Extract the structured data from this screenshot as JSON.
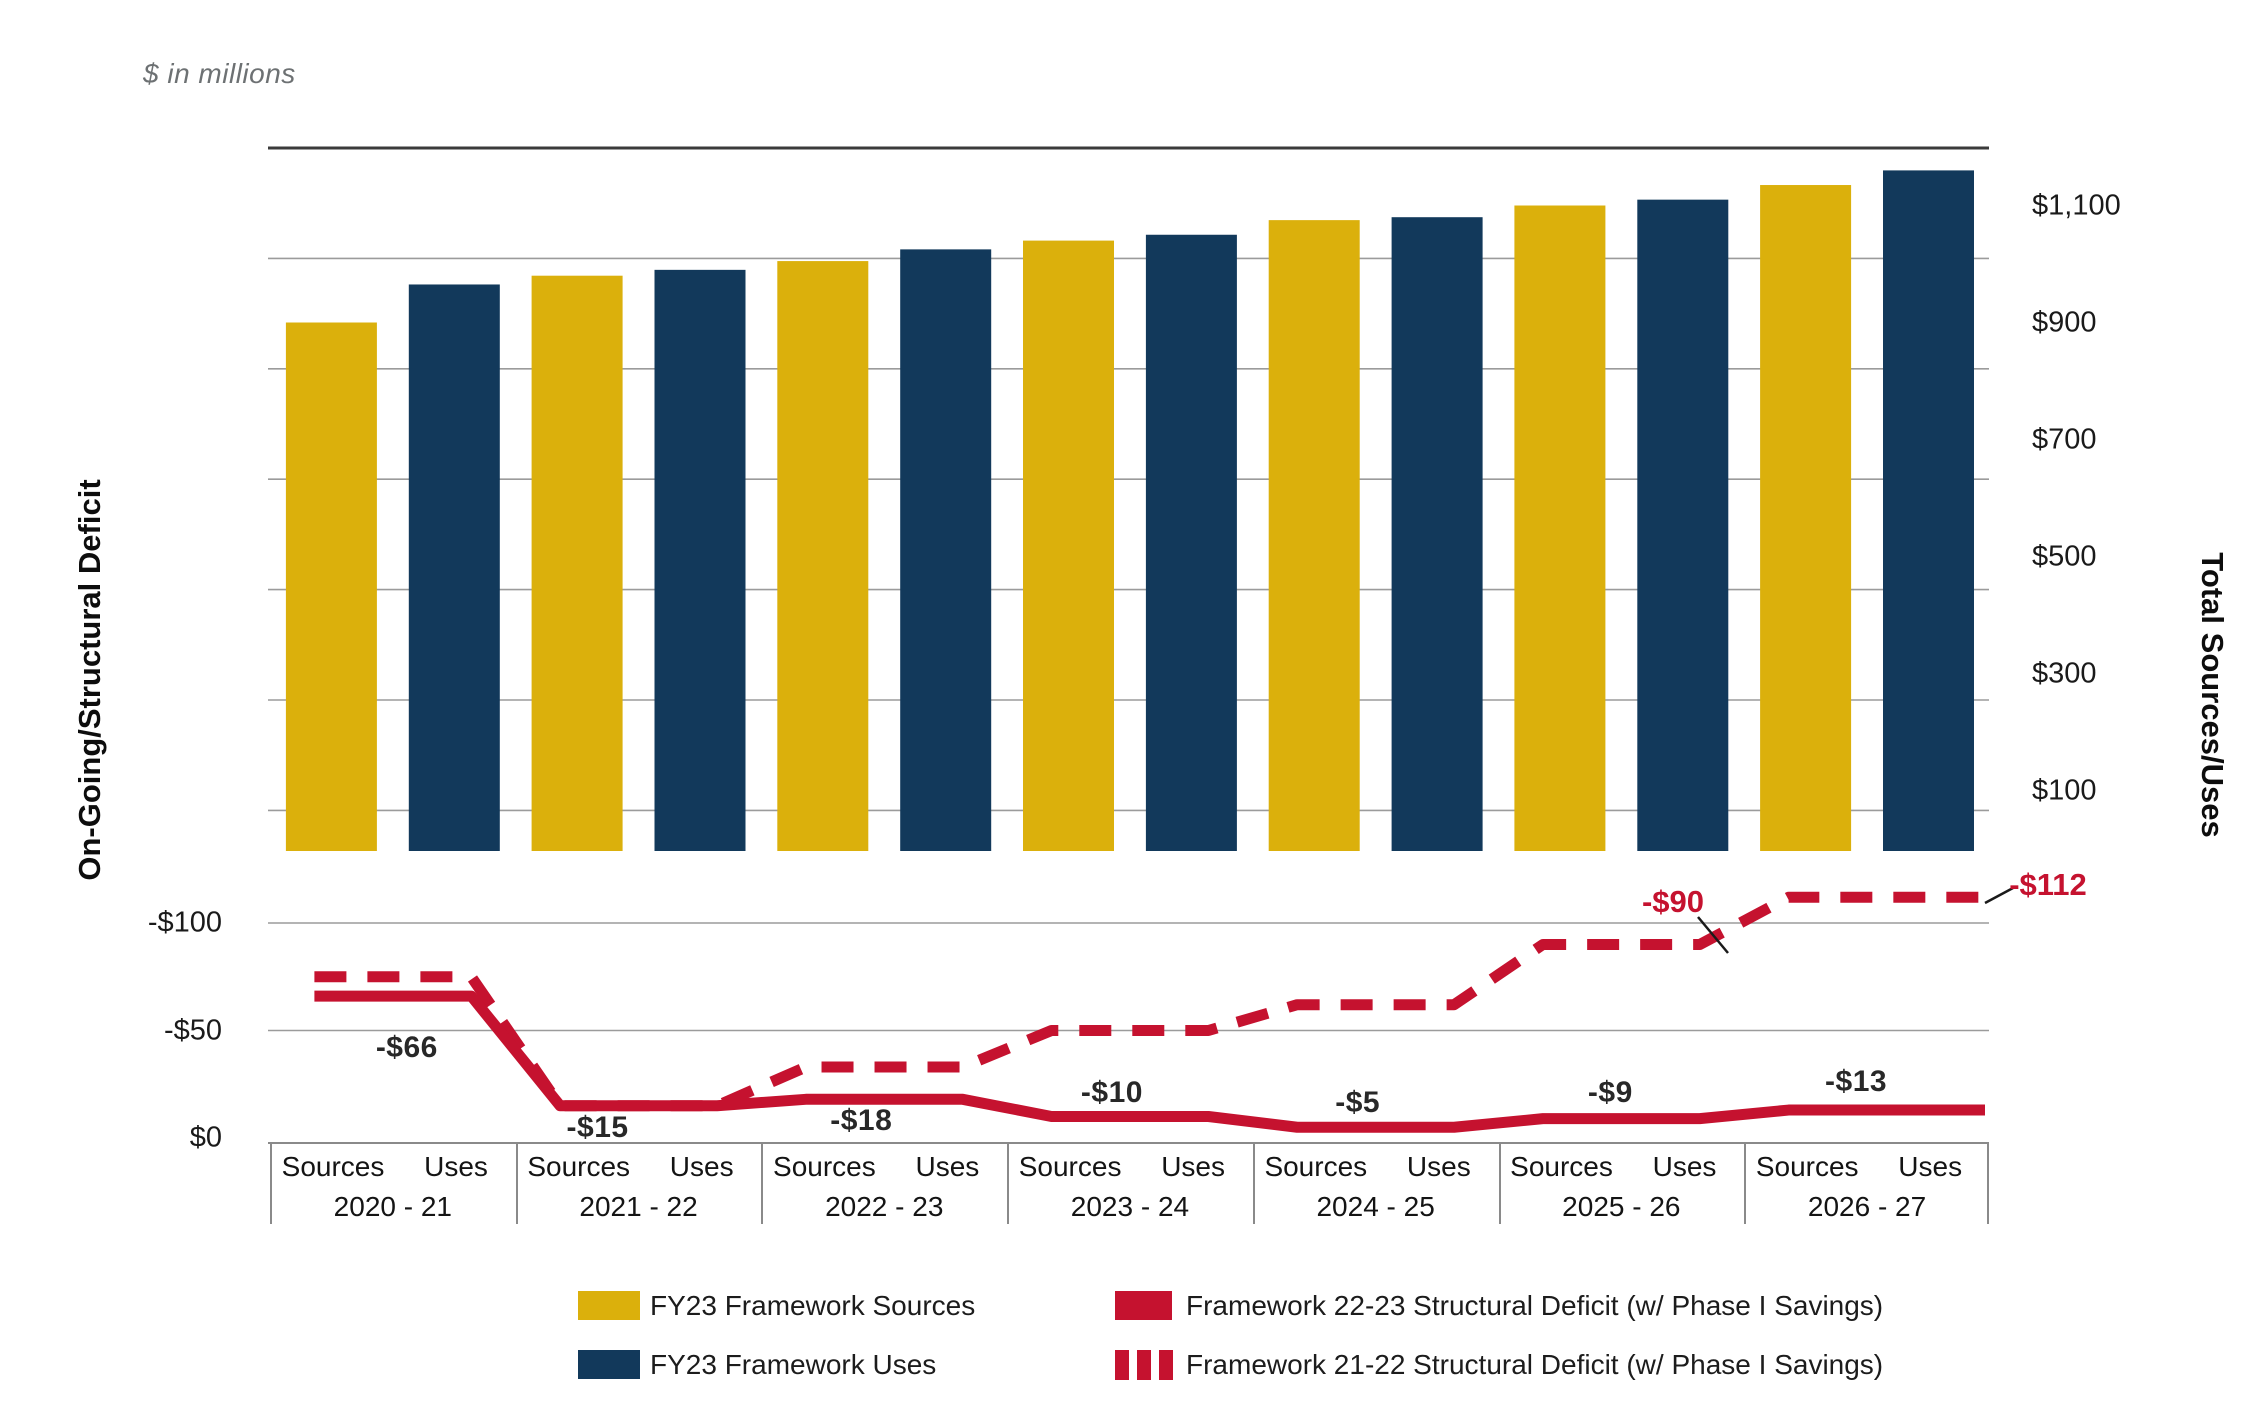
{
  "note": "$ in millions",
  "colors": {
    "gold": "#DBB00C",
    "navy": "#12395B",
    "red": "#C5122F",
    "grid": "#9b9b9b",
    "top_border": "#3b3b3b",
    "connector": "#1a1a1a"
  },
  "left_axis": {
    "title": "On-Going/Structural Deficit",
    "ticks": [
      "-$100",
      "-$50",
      "$0"
    ],
    "tick_values": [
      -100,
      -50,
      0
    ]
  },
  "right_axis": {
    "title": "Total Sources/Uses",
    "ticks": [
      "$1,100",
      "$900",
      "$700",
      "$500",
      "$300",
      "$100"
    ],
    "tick_values": [
      1100,
      900,
      700,
      500,
      300,
      100
    ]
  },
  "x_axis": {
    "column_headers": [
      "Sources",
      "Uses"
    ],
    "years": [
      "2020 - 21",
      "2021 - 22",
      "2022 - 23",
      "2023 - 24",
      "2024 - 25",
      "2025 - 26",
      "2026 - 27"
    ]
  },
  "legend": [
    {
      "label": "FY23 Framework Sources",
      "swatch": "gold-solid"
    },
    {
      "label": "FY23 Framework Uses",
      "swatch": "navy-solid"
    },
    {
      "label": "Framework 22-23 Structural Deficit (w/ Phase I Savings)",
      "swatch": "red-solid"
    },
    {
      "label": "Framework 21-22 Structural Deficit (w/ Phase I Savings)",
      "swatch": "red-dashed"
    }
  ],
  "chart_data": {
    "type": "combo-bar-line",
    "categories": [
      "2020 - 21",
      "2021 - 22",
      "2022 - 23",
      "2023 - 24",
      "2024 - 25",
      "2025 - 26",
      "2026 - 27"
    ],
    "column_pairs": [
      "Sources",
      "Uses"
    ],
    "bar_series": [
      {
        "name": "FY23 Framework Sources",
        "color_key": "gold",
        "axis": "right",
        "values": [
          900,
          980,
          1005,
          1040,
          1075,
          1100,
          1135
        ]
      },
      {
        "name": "FY23 Framework Uses",
        "color_key": "navy",
        "axis": "right",
        "values": [
          965,
          990,
          1025,
          1050,
          1080,
          1110,
          1160
        ]
      }
    ],
    "line_series": [
      {
        "name": "Framework 21-22 Structural Deficit (w/ Phase I Savings)",
        "style": "dashed",
        "axis": "left",
        "values": [
          -75,
          -15,
          -33,
          -50,
          -62,
          -90,
          -112
        ],
        "annotations": [
          {
            "year_index": 5,
            "label": "-$90"
          },
          {
            "year_index": 6,
            "label": "-$112"
          }
        ]
      },
      {
        "name": "Framework 22-23 Structural Deficit (w/ Phase I Savings)",
        "style": "solid",
        "axis": "left",
        "values": [
          -66,
          -15,
          -18,
          -10,
          -5,
          -9,
          -13
        ],
        "point_labels": [
          "-$66",
          "-$15",
          "-$18",
          "-$10",
          "-$5",
          "-$9",
          "-$13"
        ]
      }
    ],
    "right_axis_range": [
      0,
      1200
    ],
    "left_axis_range": [
      0,
      -120
    ],
    "grid": true,
    "legend_position": "bottom"
  }
}
